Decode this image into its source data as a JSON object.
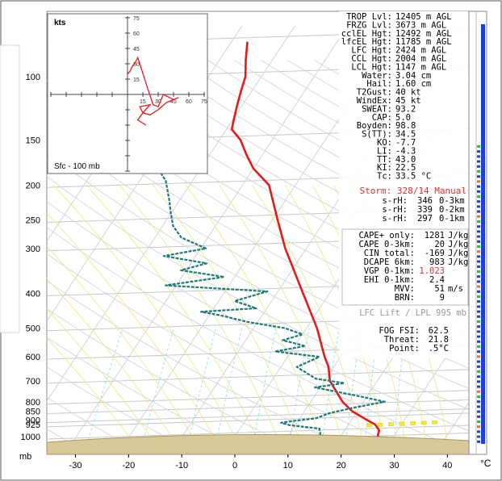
{
  "chart_data": {
    "type": "line",
    "chart_kind": "skew-t log-p sounding",
    "x_axis": {
      "ticks": [
        "-30",
        "-20",
        "-10",
        "0",
        "10",
        "20",
        "30",
        "40"
      ],
      "tick_values": [
        -30,
        -20,
        -10,
        0,
        10,
        20,
        30,
        40
      ],
      "unit": "°C",
      "range": [
        -35,
        45
      ]
    },
    "y_axis": {
      "unit": "mb",
      "scale": "log",
      "ticks": [
        "100",
        "150",
        "200",
        "250",
        "300",
        "400",
        "500",
        "600",
        "700",
        "800",
        "850",
        "900",
        "925",
        "1000"
      ],
      "tick_values": [
        100,
        150,
        200,
        250,
        300,
        400,
        500,
        600,
        700,
        800,
        850,
        900,
        925,
        1000
      ],
      "range": [
        1050,
        72
      ]
    },
    "skew_per_decade": 45,
    "series": [
      {
        "color": "#e21b1b",
        "points": [
          [
            27,
            1000
          ],
          [
            26.5,
            960
          ],
          [
            25,
            925
          ],
          [
            23,
            900
          ],
          [
            19,
            850
          ],
          [
            16,
            800
          ],
          [
            11,
            700
          ],
          [
            9,
            640
          ],
          [
            7,
            600
          ],
          [
            2,
            500
          ],
          [
            -5,
            400
          ],
          [
            -14,
            300
          ],
          [
            -19,
            250
          ],
          [
            -25,
            200
          ],
          [
            -30,
            180
          ],
          [
            -33,
            165
          ],
          [
            -36,
            150
          ],
          [
            -39,
            140
          ],
          [
            -40,
            130
          ],
          [
            -41,
            120
          ],
          [
            -42,
            110
          ],
          [
            -43,
            100
          ],
          [
            -45,
            90
          ],
          [
            -47,
            80
          ]
        ]
      },
      {
        "color": "#1f7a78",
        "points": [
          [
            16,
            990
          ],
          [
            15,
            950
          ],
          [
            9,
            930
          ],
          [
            7,
            915
          ],
          [
            9,
            905
          ],
          [
            13,
            890
          ],
          [
            15,
            860
          ],
          [
            19,
            830
          ],
          [
            24,
            800
          ],
          [
            18,
            770
          ],
          [
            9,
            730
          ],
          [
            14,
            710
          ],
          [
            8,
            690
          ],
          [
            3,
            640
          ],
          [
            6,
            600
          ],
          [
            -3,
            580
          ],
          [
            2,
            560
          ],
          [
            -3,
            540
          ],
          [
            0,
            520
          ],
          [
            -4,
            500
          ],
          [
            -12,
            480
          ],
          [
            -18,
            460
          ],
          [
            -22,
            450
          ],
          [
            -12,
            440
          ],
          [
            -17,
            420
          ],
          [
            -12,
            395
          ],
          [
            -32,
            380
          ],
          [
            -22,
            360
          ],
          [
            -31,
            345
          ],
          [
            -27,
            330
          ],
          [
            -36,
            315
          ],
          [
            -29,
            300
          ],
          [
            -35,
            280
          ],
          [
            -38,
            260
          ],
          [
            -40,
            240
          ],
          [
            -42,
            220
          ],
          [
            -45,
            195
          ],
          [
            -48,
            180
          ]
        ]
      }
    ],
    "lifted_parcel_dots": [
      [
        24,
        930
      ],
      [
        26,
        927
      ],
      [
        28,
        924
      ],
      [
        30,
        921
      ],
      [
        32,
        918
      ],
      [
        34,
        915
      ],
      [
        36,
        912
      ]
    ],
    "hodograph": {
      "title": "kts",
      "label": "Sfc - 100 mb",
      "axis_ticks": [
        "15",
        "30",
        "45",
        "60",
        "75"
      ],
      "range": 75,
      "points": [
        [
          0,
          20
        ],
        [
          2,
          22
        ],
        [
          5,
          28
        ],
        [
          8,
          32
        ],
        [
          10,
          36
        ],
        [
          12,
          30
        ],
        [
          20,
          5
        ],
        [
          25,
          -10
        ],
        [
          30,
          -12
        ],
        [
          35,
          0
        ],
        [
          45,
          -5
        ],
        [
          50,
          -3
        ],
        [
          38,
          -8
        ],
        [
          30,
          -15
        ],
        [
          22,
          -20
        ],
        [
          15,
          -18
        ],
        [
          12,
          -12
        ],
        [
          22,
          -10
        ],
        [
          15,
          -18
        ],
        [
          10,
          -25
        ],
        [
          18,
          -30
        ]
      ]
    }
  },
  "panel_top": [
    {
      "label": "TROP Lvl:",
      "value": "12405 m AGL"
    },
    {
      "label": "FRZG Lvl:",
      "value": "3673 m AGL"
    },
    {
      "label": "cclEL Hgt:",
      "value": "12492 m AGL"
    },
    {
      "label": "lfcEL Hgt:",
      "value": "11785 m AGL"
    },
    {
      "label": "LFC Hgt:",
      "value": "2424 m AGL"
    },
    {
      "label": "CCL Hgt:",
      "value": "2004 m AGL"
    },
    {
      "label": "LCL Hgt:",
      "value": "1147 m AGL"
    },
    {
      "label": "Water:",
      "value": "3.04 cm"
    },
    {
      "label": "Hail:",
      "value": "1.60 cm"
    },
    {
      "label": "T2Gust:",
      "value": "40 kt"
    },
    {
      "label": "WindEx:",
      "value": "45 kt"
    },
    {
      "label": "SWEAT:",
      "value": "93.2"
    },
    {
      "label": "CAP:",
      "value": "5.0"
    },
    {
      "label": "Boyden:",
      "value": "98.8"
    },
    {
      "label": "S(TT):",
      "value": "34.5"
    },
    {
      "label": "KO:",
      "value": "-7.7"
    },
    {
      "label": "LI:",
      "value": "-4.3"
    },
    {
      "label": "TT:",
      "value": "43.0"
    },
    {
      "label": "KI:",
      "value": "22.5"
    },
    {
      "label": "Tc:",
      "value": "33.5 °C"
    }
  ],
  "storm_line": "Storm: 328/14 Manual",
  "srh_rows": [
    {
      "label": "s-rH:",
      "value": "346",
      "range": "0-3km"
    },
    {
      "label": "s-rH:",
      "value": "339",
      "range": "0-2km"
    },
    {
      "label": "s-rH:",
      "value": "297",
      "range": "0-1km"
    }
  ],
  "cape_rows": [
    {
      "label": "CAPE+ only:",
      "value": "1281",
      "unit": "J/kg"
    },
    {
      "label": "CAPE 0-3km:",
      "value": "20",
      "unit": "J/kg"
    },
    {
      "label": "CIN total:",
      "value": "-169",
      "unit": "J/kg"
    },
    {
      "label": "DCAPE 6km:",
      "value": "983",
      "unit": "J/kg"
    },
    {
      "label": "VGP 0-1km:",
      "value": "1.023",
      "unit": ""
    },
    {
      "label": "EHI 0-1km:",
      "value": "2.4",
      "unit": ""
    },
    {
      "label": "MVV:",
      "value": "51",
      "unit": "m/s"
    },
    {
      "label": "BRN:",
      "value": "9",
      "unit": ""
    }
  ],
  "lift_line": "LFC Lift / LPL 995 mb",
  "fog_rows": [
    {
      "label": "FOG FSI:",
      "value": "62.5"
    },
    {
      "label": "Threat:",
      "value": "21.8"
    },
    {
      "label": "Point:",
      "value": ".5°C"
    }
  ],
  "colors": {
    "temperature": "#e21b1b",
    "dewpoint": "#1f7a78",
    "ground": "#d8c89a",
    "storm_text": "#e03030",
    "highlight_text": "#e03030",
    "lift_text": "#9a9a9a",
    "isotherm": "#cfcfcf",
    "dry_adiabat": "#d4d4d4",
    "moist_adiabat": "#e8ec8a",
    "mixing_ratio": "#8fe3d2"
  }
}
